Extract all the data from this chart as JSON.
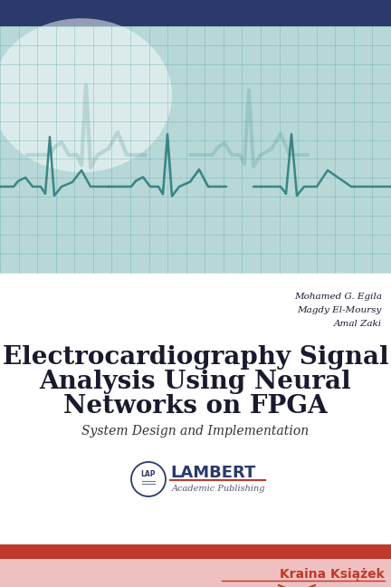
{
  "title_line1": "Electrocardiography Signal",
  "title_line2": "Analysis Using Neural",
  "title_line3": "Networks on FPGA",
  "subtitle": "System Design and Implementation",
  "authors": [
    "Mohamed G. Egila",
    "Magdy El-Moursy",
    "Amal Zaki"
  ],
  "top_bar_color": "#2b3a6b",
  "cover_bg_color": "#b8d8d8",
  "white_section_color": "#ffffff",
  "bottom_bar_color1": "#c0392b",
  "bottom_bar_color2": "#f0c0c0",
  "bottom_text": "Kraina Książek",
  "bottom_text_color": "#c0392b",
  "title_color": "#1a1a2e",
  "subtitle_color": "#333333",
  "author_color": "#1a1a2e",
  "grid_color": "#5ba8a8",
  "ecg_color": "#2e7d7d",
  "publisher_text": "LAMBERT",
  "publisher_sub": "Academic Publishing",
  "publisher_color": "#2b3a6b",
  "publisher_line_color": "#c0392b",
  "lap_circle_color": "#2b3a6b"
}
